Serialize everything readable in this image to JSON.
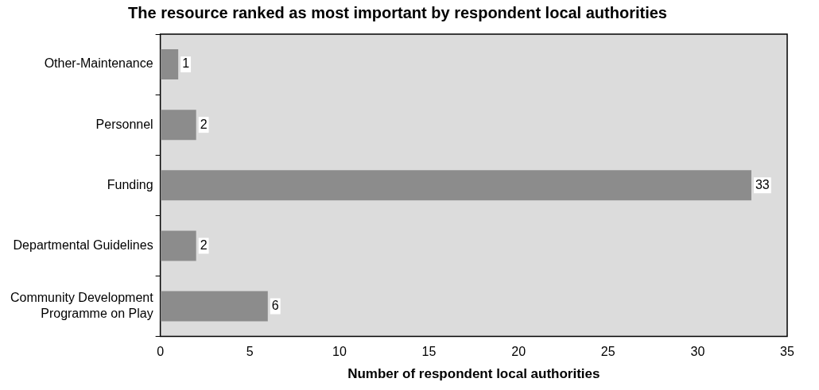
{
  "chart_data": {
    "type": "bar",
    "orientation": "horizontal",
    "title": "The resource ranked as most important by respondent local authorities",
    "xlabel": "Number of respondent local authorities",
    "categories": [
      "Other-Maintenance",
      "Personnel",
      "Funding",
      "Departmental Guidelines",
      "Community Development Programme on Play"
    ],
    "values": [
      1,
      2,
      33,
      2,
      6
    ],
    "color": "#8c8c8c",
    "xlim": [
      0,
      35
    ],
    "xticks": [
      0,
      5,
      10,
      15,
      20,
      25,
      30,
      35
    ],
    "data_labels": true,
    "grid": false,
    "legend": false
  }
}
